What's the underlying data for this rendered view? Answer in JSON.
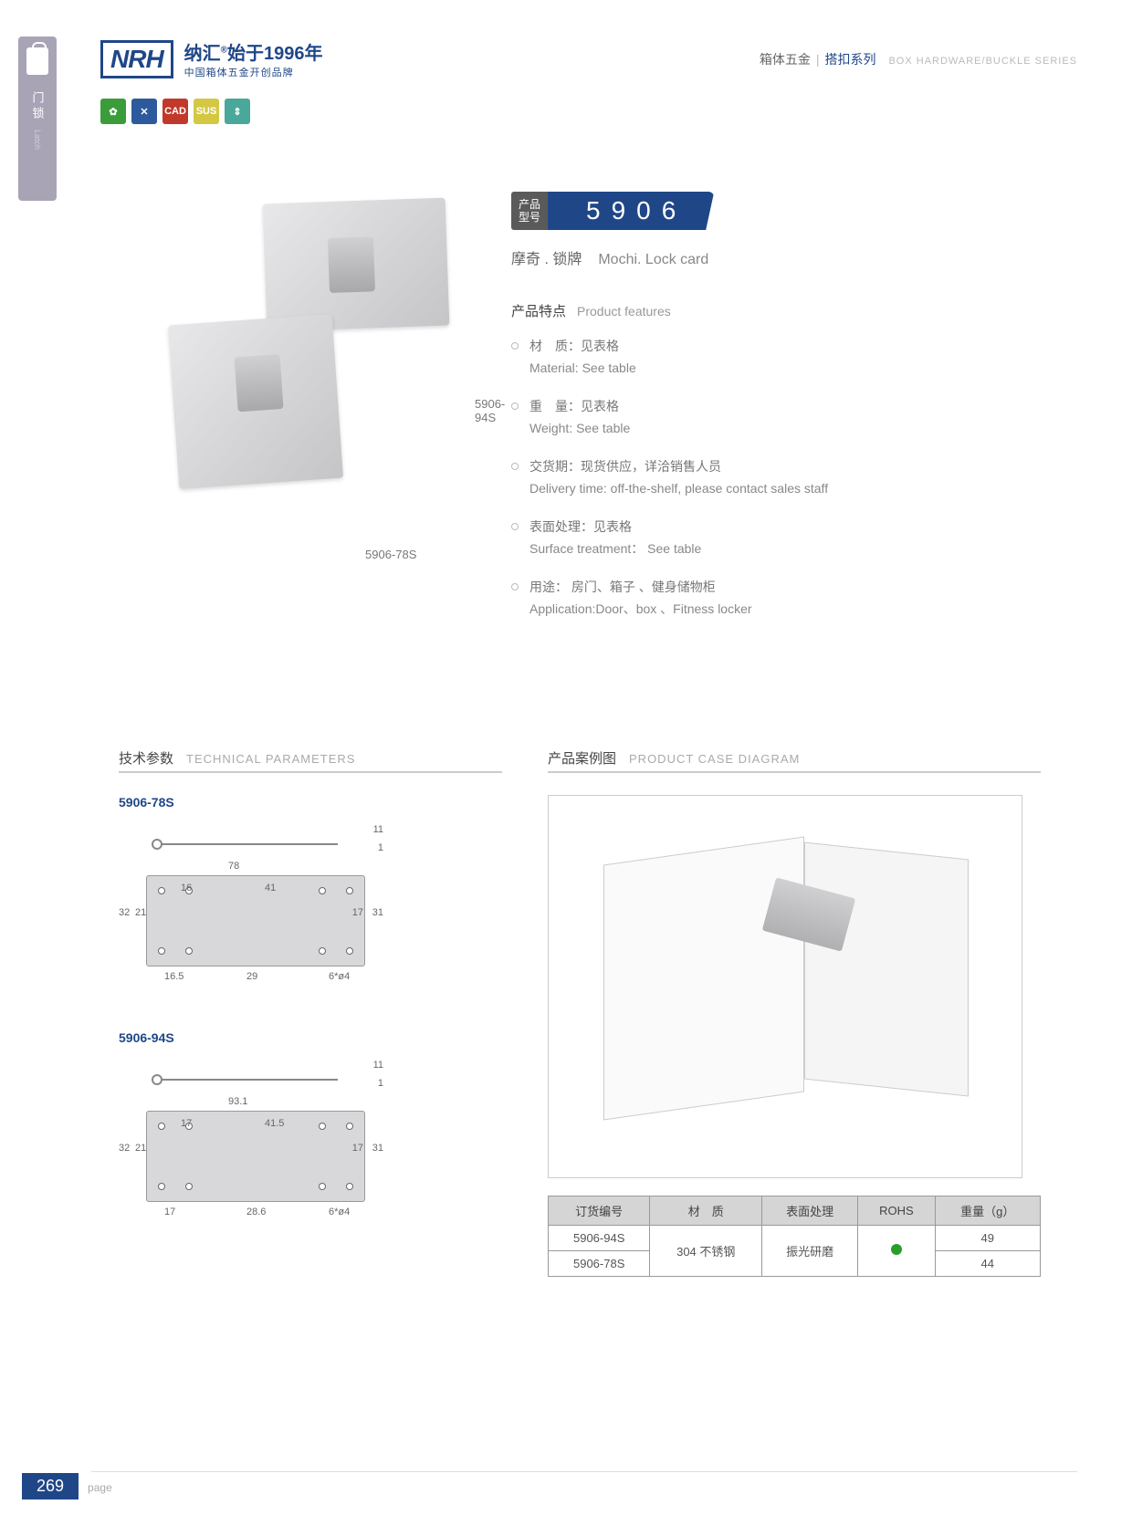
{
  "sidebar": {
    "cn": "门锁",
    "en": "Latch"
  },
  "header": {
    "logo": "NRH",
    "brand_cn": "纳汇",
    "brand_tag": "始于1996年",
    "brand_sub": "中国箱体五金开创品牌",
    "right_cn1": "箱体五金",
    "right_cn2": "搭扣系列",
    "right_en": "BOX HARDWARE/BUCKLE SERIES"
  },
  "icons": [
    "✿",
    "✕",
    "CAD",
    "SUS",
    "⇕"
  ],
  "model": {
    "tag1": "产品",
    "tag2": "型号",
    "number": "5906",
    "name_cn": "摩奇 . 锁牌",
    "name_en": "Mochi. Lock card"
  },
  "product_labels": {
    "p1": "5906-94S",
    "p2": "5906-78S"
  },
  "features": {
    "title_cn": "产品特点",
    "title_en": "Product features",
    "items": [
      {
        "cn": "材　质：见表格",
        "en": "Material: See table"
      },
      {
        "cn": "重　量：见表格",
        "en": "Weight: See table"
      },
      {
        "cn": "交货期：现货供应，详洽销售人员",
        "en": "Delivery time: off-the-shelf, please contact sales staff"
      },
      {
        "cn": "表面处理：见表格",
        "en": "Surface treatment： See table"
      },
      {
        "cn": "用途： 房门、箱子 、健身储物柜",
        "en": "Application:Door、box 、Fitness locker"
      }
    ]
  },
  "tech": {
    "title_cn": "技术参数",
    "title_en": "TECHNICAL PARAMETERS",
    "diagrams": [
      {
        "label": "5906-78S",
        "dims": {
          "w": "78",
          "a": "16",
          "b": "41",
          "c": "16.5",
          "d": "29",
          "h1": "32",
          "h2": "21",
          "h3": "17",
          "h4": "31",
          "t1": "1",
          "t2": "11",
          "hole": "6*ø4"
        }
      },
      {
        "label": "5906-94S",
        "dims": {
          "w": "93.1",
          "a": "17",
          "b": "41.5",
          "c": "17",
          "d": "28.6",
          "h1": "32",
          "h2": "21",
          "h3": "17",
          "h4": "31",
          "t1": "1",
          "t2": "11",
          "hole": "6*ø4"
        }
      }
    ]
  },
  "case": {
    "title_cn": "产品案例图",
    "title_en": "PRODUCT CASE DIAGRAM"
  },
  "table": {
    "headers": [
      "订货编号",
      "材　质",
      "表面处理",
      "ROHS",
      "重量（g）"
    ],
    "rows": [
      {
        "code": "5906-94S",
        "material": "304 不锈钢",
        "surface": "振光研磨",
        "rohs": true,
        "weight": "49"
      },
      {
        "code": "5906-78S",
        "material": "",
        "surface": "",
        "rohs": true,
        "weight": "44"
      }
    ]
  },
  "footer": {
    "page": "269",
    "label": "page"
  },
  "colors": {
    "brand": "#1f4788",
    "gray": "#888"
  }
}
